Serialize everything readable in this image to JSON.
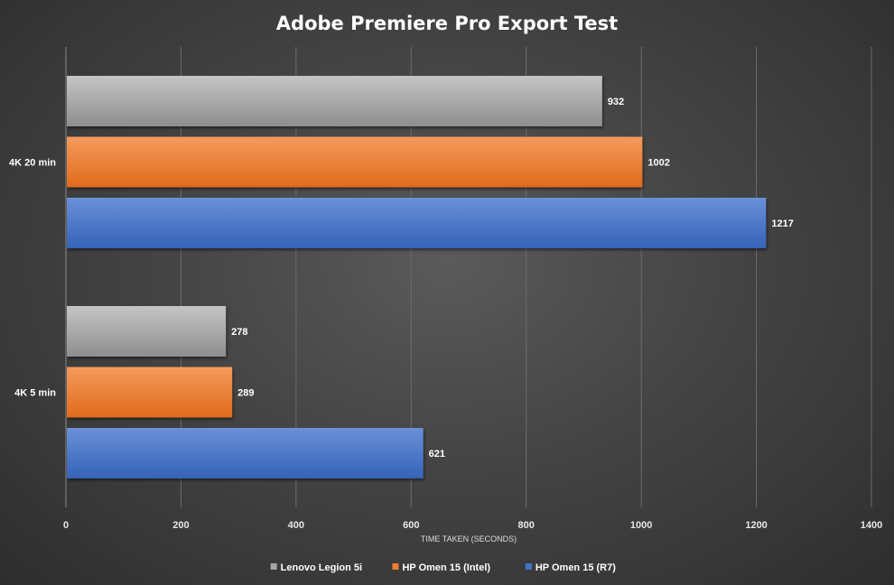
{
  "chart_data": {
    "type": "bar",
    "orientation": "horizontal",
    "title": "Adobe Premiere Pro Export Test",
    "xlabel": "TIME TAKEN (SECONDS)",
    "ylabel": "",
    "xlim": [
      0,
      1400
    ],
    "xticks": [
      0,
      200,
      400,
      600,
      800,
      1000,
      1200,
      1400
    ],
    "grid": true,
    "legend_position": "bottom",
    "categories": [
      "4K 20 min",
      "4K 5 min"
    ],
    "series": [
      {
        "name": "Lenovo Legion 5i",
        "color": "#a5a5a5",
        "values": [
          932,
          278
        ]
      },
      {
        "name": "HP Omen 15 (Intel)",
        "color": "#ed7d31",
        "values": [
          1002,
          289
        ]
      },
      {
        "name": "HP Omen 15 (R7)",
        "color": "#4472c4",
        "values": [
          1217,
          621
        ]
      }
    ]
  }
}
